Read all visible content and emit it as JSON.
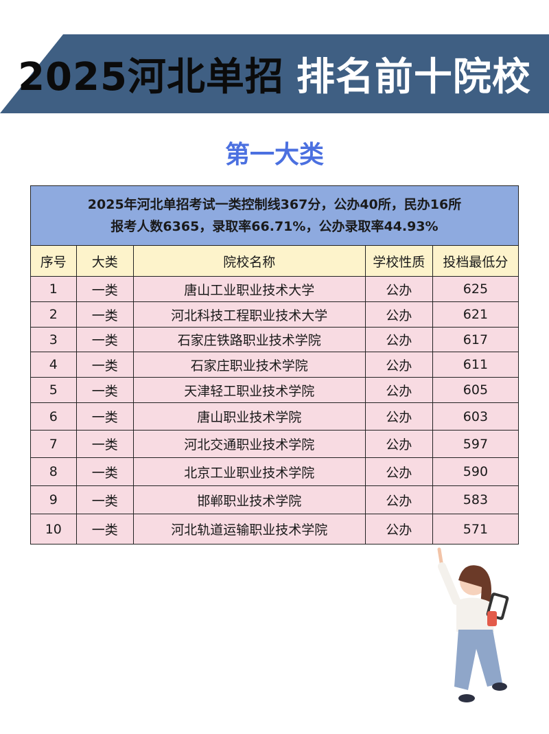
{
  "header": {
    "title_black": "2025河北单招",
    "title_white": "排名前十院校",
    "subtitle": "第一大类"
  },
  "table": {
    "info_line1": "2025年河北单招考试一类控制线367分，公办40所，民办16所",
    "info_line2": "报考人数6365，录取率66.71%，公办录取率44.93%",
    "columns": [
      "序号",
      "大类",
      "院校名称",
      "学校性质",
      "投档最低分"
    ],
    "rows": [
      [
        "1",
        "一类",
        "唐山工业职业技术大学",
        "公办",
        "625"
      ],
      [
        "2",
        "一类",
        "河北科技工程职业技术大学",
        "公办",
        "621"
      ],
      [
        "3",
        "一类",
        "石家庄铁路职业技术学院",
        "公办",
        "617"
      ],
      [
        "4",
        "一类",
        "石家庄职业技术学院",
        "公办",
        "611"
      ],
      [
        "5",
        "一类",
        "天津轻工职业技术学院",
        "公办",
        "605"
      ],
      [
        "6",
        "一类",
        "唐山职业技术学院",
        "公办",
        "603"
      ],
      [
        "7",
        "一类",
        "河北交通职业技术学院",
        "公办",
        "597"
      ],
      [
        "8",
        "一类",
        "北京工业职业技术学院",
        "公办",
        "590"
      ],
      [
        "9",
        "一类",
        "邯郸职业技术学院",
        "公办",
        "583"
      ],
      [
        "10",
        "一类",
        "河北轨道运输职业技术学院",
        "公办",
        "571"
      ]
    ]
  },
  "colors": {
    "banner": "#3f5f83",
    "subtitle": "#4b70e0",
    "info_bg": "#8eaadf",
    "header_bg": "#fdf3cb",
    "row_bg": "#f8dbe2"
  }
}
